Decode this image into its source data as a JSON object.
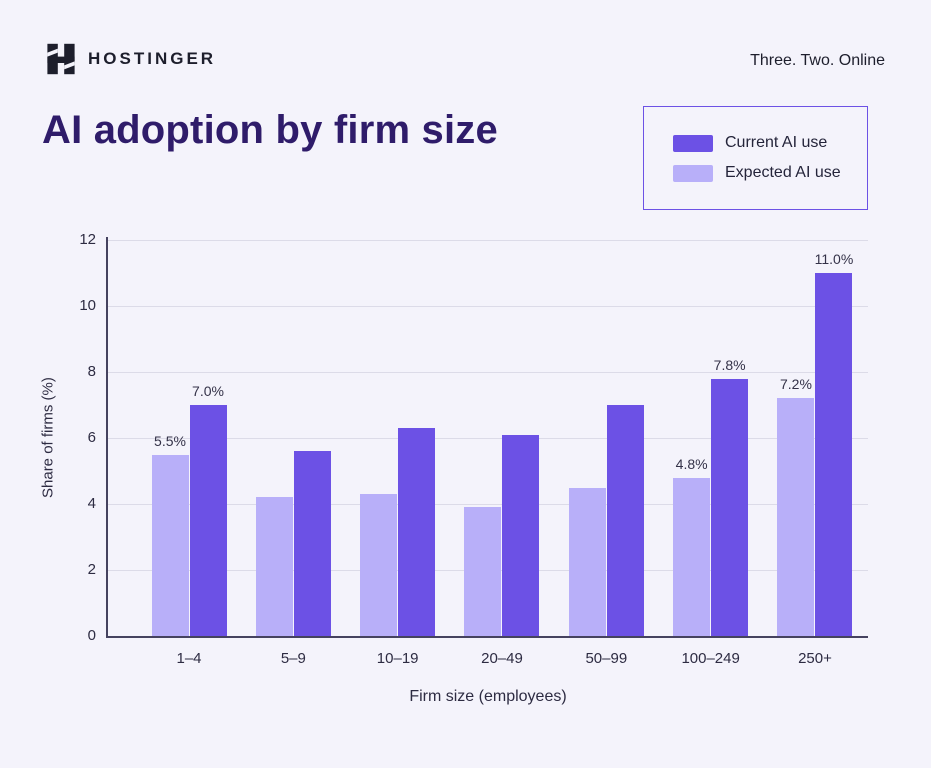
{
  "header": {
    "brand": "HOSTINGER",
    "tagline": "Three. Two. Online"
  },
  "title": "AI adoption by firm size",
  "legend": {
    "items": [
      {
        "label": "Current AI use",
        "color": "#6C51E5"
      },
      {
        "label": "Expected AI use",
        "color": "#B8AFF9"
      }
    ]
  },
  "chart_data": {
    "type": "bar",
    "title": "AI adoption by firm size",
    "categories": [
      "1–4",
      "5–9",
      "10–19",
      "20–49",
      "50–99",
      "100–249",
      "250+"
    ],
    "series": [
      {
        "name": "Expected AI use",
        "color": "#B8AFF9",
        "values": [
          5.5,
          4.2,
          4.3,
          3.9,
          4.5,
          4.8,
          7.2
        ],
        "labels": [
          "5.5%",
          "",
          "",
          "",
          "",
          "4.8%",
          "7.2%"
        ]
      },
      {
        "name": "Current AI use",
        "color": "#6C51E5",
        "values": [
          7.0,
          5.6,
          6.3,
          6.1,
          7.0,
          7.8,
          11.0
        ],
        "labels": [
          "7.0%",
          "",
          "",
          "",
          "",
          "7.8%",
          "11.0%"
        ]
      }
    ],
    "xlabel": "Firm size (employees)",
    "ylabel": "Share of firms (%)",
    "ylim": [
      0,
      12
    ],
    "yticks": [
      0,
      2,
      4,
      6,
      8,
      10,
      12
    ],
    "grid": true,
    "legend_position": "top-right"
  },
  "colors": {
    "background": "#F4F3FB",
    "accent_dark": "#6C51E5",
    "accent_light": "#B8AFF9",
    "title_text": "#2F1C6A",
    "body_text": "#1D1E2C",
    "axis_line": "#45425F",
    "gridline": "#DCDBE8"
  }
}
